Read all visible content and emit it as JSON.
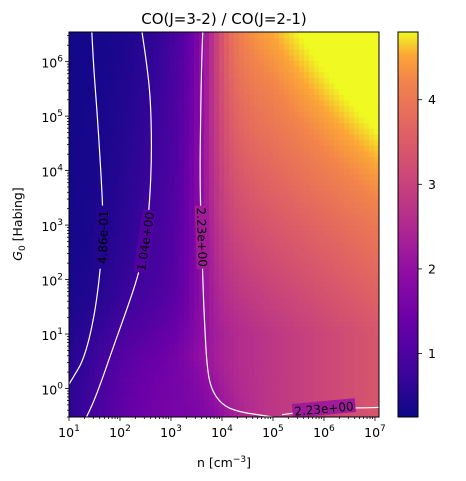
{
  "chart_data": {
    "type": "heatmap",
    "title": "CO(J=3-2) / CO(J=2-1)",
    "xlabel": "n [cm$^{-3}$]",
    "ylabel": "$G_0$ [Habing]",
    "x_scale": "log",
    "y_scale": "log",
    "xlim": [
      10,
      12000000
    ],
    "ylim": [
      0.3,
      3500000
    ],
    "x_ticks": [
      {
        "value": 10,
        "base": "10",
        "exp": "1"
      },
      {
        "value": 100,
        "base": "10",
        "exp": "2"
      },
      {
        "value": 1000,
        "base": "10",
        "exp": "3"
      },
      {
        "value": 10000,
        "base": "10",
        "exp": "4"
      },
      {
        "value": 100000,
        "base": "10",
        "exp": "5"
      },
      {
        "value": 1000000,
        "base": "10",
        "exp": "6"
      },
      {
        "value": 10000000,
        "base": "10",
        "exp": "7"
      }
    ],
    "y_ticks": [
      {
        "value": 1,
        "base": "10",
        "exp": "0"
      },
      {
        "value": 10,
        "base": "10",
        "exp": "1"
      },
      {
        "value": 100,
        "base": "10",
        "exp": "2"
      },
      {
        "value": 1000,
        "base": "10",
        "exp": "3"
      },
      {
        "value": 10000,
        "base": "10",
        "exp": "4"
      },
      {
        "value": 100000,
        "base": "10",
        "exp": "5"
      },
      {
        "value": 1000000,
        "base": "10",
        "exp": "6"
      }
    ],
    "colormap": "plasma",
    "colorbar_range": [
      0.25,
      4.8
    ],
    "colorbar_ticks": [
      "1",
      "2",
      "3",
      "4"
    ],
    "colorbar_tick_values": [
      1,
      2,
      3,
      4
    ],
    "contour_color": "#ffffff",
    "contours": [
      {
        "level": 0.486,
        "label": "4.86e-01",
        "label_at": [
          47,
          600
        ],
        "points": [
          [
            10,
            1.2
          ],
          [
            13,
            1.8
          ],
          [
            18,
            3
          ],
          [
            25,
            8
          ],
          [
            32,
            25
          ],
          [
            38,
            80
          ],
          [
            43,
            250
          ],
          [
            47,
            600
          ],
          [
            46,
            2000
          ],
          [
            42,
            10000
          ],
          [
            36,
            100000
          ],
          [
            30,
            1000000
          ],
          [
            28,
            3500000
          ]
        ]
      },
      {
        "level": 1.04,
        "label": "1.04e+00",
        "label_at": [
          320,
          500
        ],
        "points": [
          [
            22,
            0.3
          ],
          [
            30,
            0.55
          ],
          [
            45,
            1.5
          ],
          [
            70,
            5
          ],
          [
            130,
            25
          ],
          [
            230,
            120
          ],
          [
            320,
            500
          ],
          [
            380,
            2500
          ],
          [
            420,
            20000
          ],
          [
            400,
            200000
          ],
          [
            330,
            1000000
          ],
          [
            270,
            3500000
          ]
        ]
      },
      {
        "level": 2.23,
        "label": "2.23e+00",
        "label_at": [
          4000,
          600
        ],
        "points": [
          [
            4200,
            3500000
          ],
          [
            4000,
            1000000
          ],
          [
            3800,
            100000
          ],
          [
            3700,
            10000
          ],
          [
            3800,
            2000
          ],
          [
            4000,
            600
          ],
          [
            4200,
            100
          ],
          [
            4500,
            20
          ],
          [
            5000,
            3
          ],
          [
            6000,
            1
          ],
          [
            10000,
            0.5
          ],
          [
            20000,
            0.38
          ],
          [
            50000,
            0.33
          ],
          [
            100000,
            0.3
          ]
        ]
      },
      {
        "level": 2.23,
        "label": "2.23e+00",
        "label_at": [
          1000000,
          0.42
        ],
        "points": [
          [
            150000,
            0.33
          ],
          [
            300000,
            0.36
          ],
          [
            1000000,
            0.42
          ],
          [
            3000000,
            0.44
          ],
          [
            6000000,
            0.44
          ],
          [
            12000000,
            0.45
          ]
        ]
      }
    ]
  }
}
